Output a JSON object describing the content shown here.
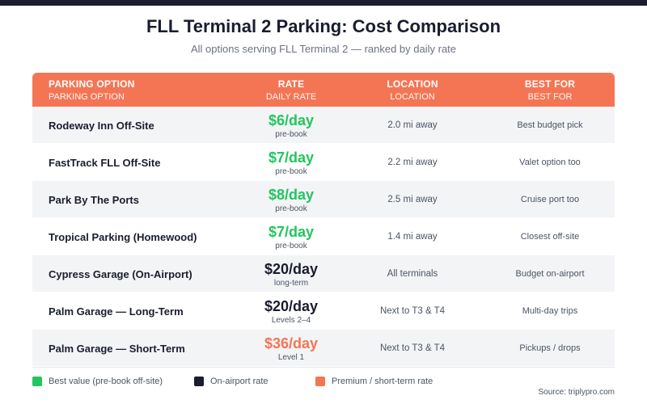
{
  "header": {
    "title": "FLL Terminal 2 Parking: Cost Comparison",
    "subtitle": "All options serving FLL Terminal 2 — ranked by daily rate"
  },
  "colors": {
    "best_value": "#22c55e",
    "on_airport": "#1a1d2e",
    "premium": "#f47554",
    "header_bg": "#f47554"
  },
  "chart_data": {
    "type": "table",
    "columns": [
      {
        "main": "PARKING OPTION",
        "sub": "PARKING OPTION"
      },
      {
        "main": "RATE",
        "sub": "DAILY RATE"
      },
      {
        "main": "LOCATION",
        "sub": "LOCATION"
      },
      {
        "main": "BEST FOR",
        "sub": "BEST FOR"
      }
    ],
    "rows": [
      {
        "name": "Rodeway Inn Off-Site",
        "rate": 6,
        "rate_label": "$6/day",
        "rate_note": "pre-book",
        "category": "best_value",
        "location": "2.0 mi away",
        "best_for": "Best budget pick"
      },
      {
        "name": "FastTrack FLL Off-Site",
        "rate": 7,
        "rate_label": "$7/day",
        "rate_note": "pre-book",
        "category": "best_value",
        "location": "2.2 mi away",
        "best_for": "Valet option too"
      },
      {
        "name": "Park By The Ports",
        "rate": 8,
        "rate_label": "$8/day",
        "rate_note": "pre-book",
        "category": "best_value",
        "location": "2.5 mi away",
        "best_for": "Cruise port too"
      },
      {
        "name": "Tropical Parking (Homewood)",
        "rate": 7,
        "rate_label": "$7/day",
        "rate_note": "pre-book",
        "category": "best_value",
        "location": "1.4 mi away",
        "best_for": "Closest off-site"
      },
      {
        "name": "Cypress Garage (On-Airport)",
        "rate": 20,
        "rate_label": "$20/day",
        "rate_note": "long-term",
        "category": "on_airport",
        "location": "All terminals",
        "best_for": "Budget on-airport"
      },
      {
        "name": "Palm Garage — Long-Term",
        "rate": 20,
        "rate_label": "$20/day",
        "rate_note": "Levels 2–4",
        "category": "on_airport",
        "location": "Next to T3 & T4",
        "best_for": "Multi-day trips"
      },
      {
        "name": "Palm Garage — Short-Term",
        "rate": 36,
        "rate_label": "$36/day",
        "rate_note": "Level 1",
        "category": "premium",
        "location": "Next to T3 & T4",
        "best_for": "Pickups / drops"
      }
    ],
    "legend": [
      {
        "label": "Best value (pre-book off-site)",
        "category": "best_value"
      },
      {
        "label": "On-airport rate",
        "category": "on_airport"
      },
      {
        "label": "Premium / short-term rate",
        "category": "premium"
      }
    ]
  },
  "footer": {
    "source": "Source: triplypro.com"
  }
}
